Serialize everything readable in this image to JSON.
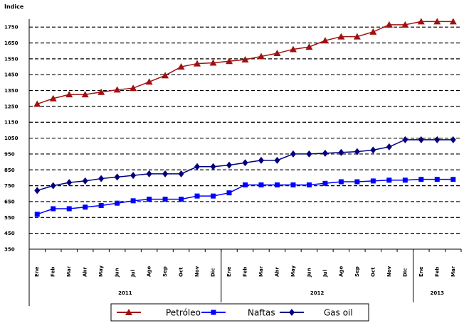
{
  "chart_data": {
    "type": "line",
    "ylabel": "Indice",
    "ylim": [
      350,
      1800
    ],
    "yticks": [
      350,
      450,
      550,
      650,
      750,
      850,
      950,
      1050,
      1150,
      1250,
      1350,
      1450,
      1550,
      1650,
      1750
    ],
    "ytick_labels": [
      "350",
      "450",
      "550",
      "650",
      "750",
      "850",
      "950",
      "1050",
      "1150",
      "1250",
      "1350",
      "1450",
      "1550",
      "1650",
      "1750"
    ],
    "grid": true,
    "legend_position": "bottom",
    "categories": [
      "Ene",
      "Feb",
      "Mar",
      "Abr",
      "May",
      "Jun",
      "Jul",
      "Ago",
      "Sep",
      "Oct",
      "Nov",
      "Dic",
      "Ene",
      "Feb",
      "Mar",
      "Abr",
      "May",
      "Jun",
      "Jul",
      "Ago",
      "Sep",
      "Oct",
      "Nov",
      "Dic",
      "Ene",
      "Feb",
      "Mar"
    ],
    "year_groups": [
      {
        "label": "2011",
        "start": 0,
        "end": 11
      },
      {
        "label": "2012",
        "start": 12,
        "end": 23
      },
      {
        "label": "2013",
        "start": 24,
        "end": 26
      }
    ],
    "series": [
      {
        "name": "Petróleo",
        "color": "#a01010",
        "marker": "triangle",
        "values": [
          1265,
          1300,
          1325,
          1325,
          1340,
          1355,
          1365,
          1405,
          1445,
          1500,
          1520,
          1525,
          1535,
          1545,
          1565,
          1585,
          1610,
          1625,
          1665,
          1690,
          1690,
          1720,
          1765,
          1765,
          1785,
          1785,
          1785
        ]
      },
      {
        "name": "Naftas",
        "color": "#0000ff",
        "marker": "square",
        "values": [
          570,
          605,
          605,
          615,
          625,
          640,
          655,
          665,
          665,
          665,
          685,
          685,
          705,
          755,
          755,
          755,
          755,
          755,
          765,
          775,
          775,
          780,
          785,
          785,
          790,
          790,
          790
        ]
      },
      {
        "name": "Gas oil",
        "color": "#000080",
        "marker": "diamond",
        "values": [
          720,
          750,
          770,
          780,
          795,
          805,
          815,
          825,
          825,
          825,
          870,
          870,
          880,
          895,
          910,
          910,
          950,
          950,
          955,
          960,
          965,
          975,
          995,
          1040,
          1040,
          1040,
          1040
        ]
      }
    ]
  }
}
